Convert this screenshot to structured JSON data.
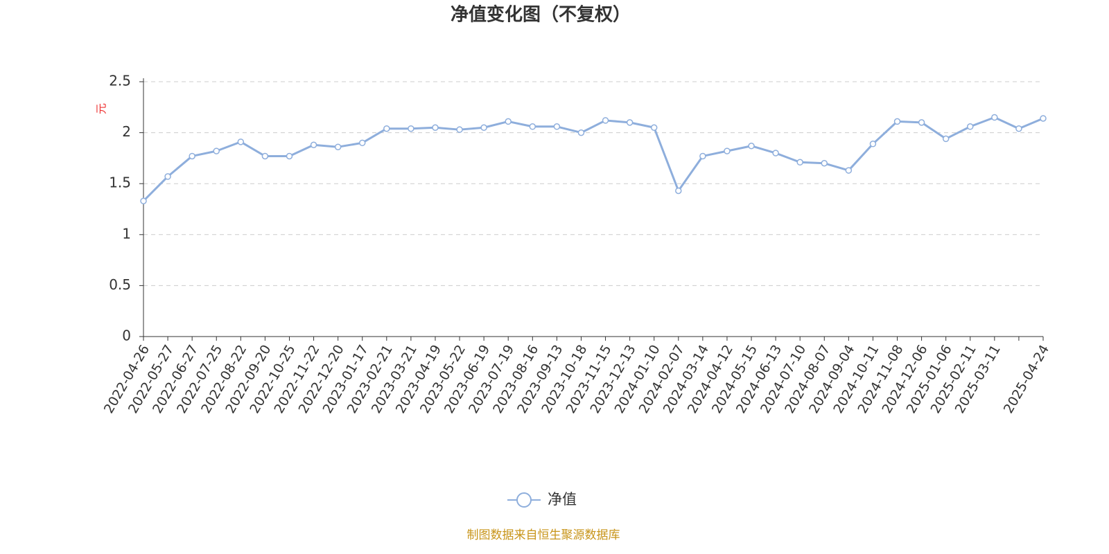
{
  "chart_data": {
    "type": "line",
    "title": "净值变化图（不复权）",
    "y_label": "元",
    "source": "制图数据来自恒生聚源数据库",
    "categories": [
      "2022-04-26",
      "2022-05-27",
      "2022-06-27",
      "2022-07-25",
      "2022-08-22",
      "2022-09-20",
      "2022-10-25",
      "2022-11-22",
      "2022-12-20",
      "2023-01-17",
      "2023-02-21",
      "2023-03-21",
      "2023-04-19",
      "2023-05-22",
      "2023-06-19",
      "2023-07-19",
      "2023-08-16",
      "2023-09-13",
      "2023-10-18",
      "2023-11-15",
      "2023-12-13",
      "2024-01-10",
      "2024-02-07",
      "2024-03-14",
      "2024-04-12",
      "2024-05-15",
      "2024-06-13",
      "2024-07-10",
      "2024-08-07",
      "2024-09-04",
      "2024-10-11",
      "2024-11-08",
      "2024-12-06",
      "2025-01-06",
      "2025-02-11",
      "2025-03-11",
      null,
      "2025-04-24"
    ],
    "series": [
      {
        "name": "净值",
        "color": "#8eaedc",
        "values": [
          1.33,
          1.57,
          1.77,
          1.82,
          1.91,
          1.77,
          1.77,
          1.88,
          1.86,
          1.9,
          2.04,
          2.04,
          2.05,
          2.03,
          2.05,
          2.11,
          2.06,
          2.06,
          2.0,
          2.12,
          2.1,
          2.05,
          1.43,
          1.77,
          1.82,
          1.87,
          1.8,
          1.71,
          1.7,
          1.63,
          1.89,
          2.11,
          2.1,
          1.94,
          2.06,
          2.15,
          2.04,
          2.14
        ]
      }
    ],
    "ylim": [
      0,
      2.5
    ],
    "yticks": [
      0,
      0.5,
      1,
      1.5,
      2,
      2.5
    ],
    "grid": true
  }
}
